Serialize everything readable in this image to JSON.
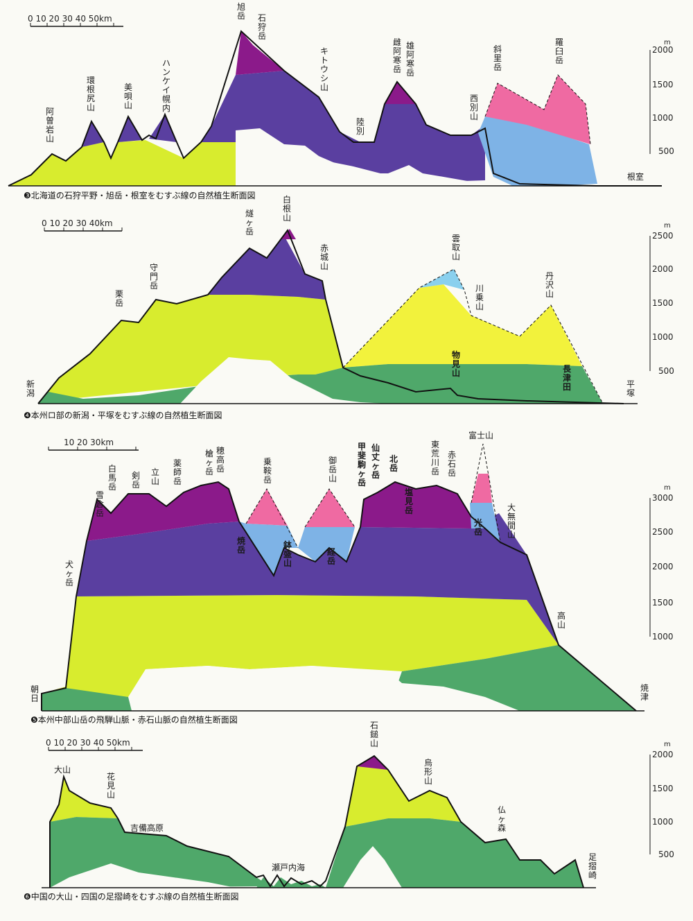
{
  "colors": {
    "magenta": "#8b1a8a",
    "purple": "#5a3fa0",
    "lime": "#d8ec2e",
    "yellow": "#f2f23c",
    "green": "#4fa86a",
    "pink": "#ef6aa2",
    "lightblue": "#7eb3e6",
    "skyblue": "#8ad0ee",
    "outline": "#111111",
    "paper": "#fafaf5"
  },
  "panels": [
    {
      "id": "p3",
      "caption": "❸北海道の石狩平野・旭岳・根室をむすぶ線の自然植生断面図",
      "scale_label": "0  10  20  30  40  50km",
      "unit": "m",
      "ticks": [
        "2000",
        "1500",
        "1000",
        "500"
      ],
      "labels": [
        {
          "text": "阿曽岩山"
        },
        {
          "text": "環根尻山"
        },
        {
          "text": "美唄山"
        },
        {
          "text": "ハンケイ幌内"
        },
        {
          "text": "旭岳"
        },
        {
          "text": "石狩岳"
        },
        {
          "text": "キトウシ山"
        },
        {
          "text": "陸別"
        },
        {
          "text": "雌阿寒岳"
        },
        {
          "text": "雄阿寒岳"
        },
        {
          "text": "西別山"
        },
        {
          "text": "斜里岳"
        },
        {
          "text": "羅臼岳"
        },
        {
          "text": "根室"
        }
      ]
    },
    {
      "id": "p4",
      "caption": "❹本州ロ部の新潟・平塚をむすぶ線の自然植生断面図",
      "scale_label": "0  10  20  30  40km",
      "unit": "m",
      "ticks": [
        "2500",
        "2000",
        "1500",
        "1000",
        "500"
      ],
      "labels": [
        {
          "text": "新潟"
        },
        {
          "text": "栗岳"
        },
        {
          "text": "守門岳"
        },
        {
          "text": "燧ヶ岳"
        },
        {
          "text": "白根山"
        },
        {
          "text": "赤城山"
        },
        {
          "text": "雲取山"
        },
        {
          "text": "川乗山"
        },
        {
          "text": "丹沢山"
        },
        {
          "text": "物見山"
        },
        {
          "text": "長津田"
        },
        {
          "text": "平塚"
        }
      ]
    },
    {
      "id": "p5",
      "caption": "❺本州中部山岳の飛騨山脈・赤石山脈の自然植生断面図",
      "scale_label": "10  20  30km",
      "unit": "m",
      "ticks": [
        "3000",
        "2500",
        "2000",
        "1500",
        "1000"
      ],
      "labels": [
        {
          "text": "朝日"
        },
        {
          "text": "犬ヶ岳"
        },
        {
          "text": "雪倉岳"
        },
        {
          "text": "白馬岳"
        },
        {
          "text": "剣岳"
        },
        {
          "text": "立山"
        },
        {
          "text": "薬師岳"
        },
        {
          "text": "槍ヶ岳"
        },
        {
          "text": "穂高岳"
        },
        {
          "text": "乗鞍岳"
        },
        {
          "text": "焼岳"
        },
        {
          "text": "鉢盛山"
        },
        {
          "text": "御岳山"
        },
        {
          "text": "経岳"
        },
        {
          "text": "甲斐駒ヶ岳"
        },
        {
          "text": "仙丈ヶ岳"
        },
        {
          "text": "北岳"
        },
        {
          "text": "塩見岳"
        },
        {
          "text": "東荒川岳"
        },
        {
          "text": "赤石岳"
        },
        {
          "text": "富士山"
        },
        {
          "text": "光岳"
        },
        {
          "text": "大無間山"
        },
        {
          "text": "高山"
        },
        {
          "text": "焼津"
        }
      ]
    },
    {
      "id": "p6",
      "caption": "❻中国の大山・四国の足摺崎をむすぶ線の自然植生断面図",
      "scale_label": "0  10  20  30  40  50km",
      "unit": "m",
      "ticks": [
        "2000",
        "1500",
        "1000",
        "500"
      ],
      "labels": [
        {
          "text": "大山"
        },
        {
          "text": "花見山"
        },
        {
          "text": "吉備高原"
        },
        {
          "text": "瀬戸内海"
        },
        {
          "text": "石鎚山"
        },
        {
          "text": "烏形山"
        },
        {
          "text": "仏ヶ森"
        },
        {
          "text": "足摺崎"
        }
      ]
    }
  ]
}
